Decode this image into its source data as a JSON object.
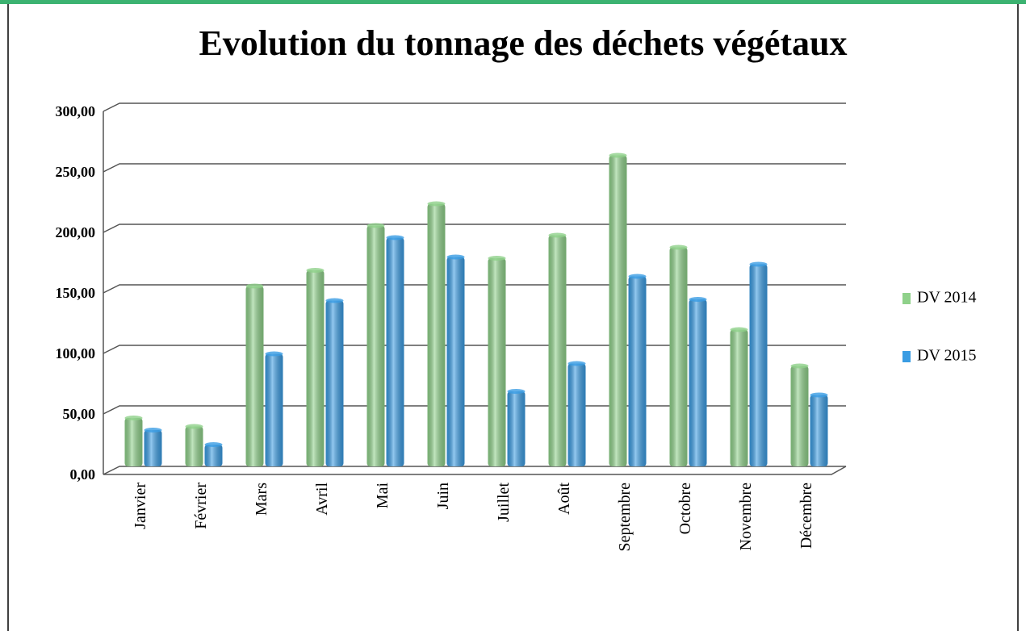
{
  "chart_data": {
    "type": "bar",
    "title": "Evolution du tonnage des déchets végétaux",
    "categories": [
      "Janvier",
      "Février",
      "Mars",
      "Avril",
      "Mai",
      "Juin",
      "Juillet",
      "Août",
      "Septembre",
      "Octobre",
      "Novembre",
      "Décembre"
    ],
    "series": [
      {
        "name": "DV 2014",
        "color": "#8fd18a",
        "values": [
          40,
          33,
          149,
          162,
          199,
          217,
          172,
          191,
          257,
          181,
          113,
          83
        ]
      },
      {
        "name": "DV 2015",
        "color": "#3a9ce3",
        "values": [
          30,
          18,
          93,
          137,
          189,
          173,
          62,
          85,
          157,
          138,
          167,
          59
        ]
      }
    ],
    "ylim": [
      0,
      300
    ],
    "yticks": [
      {
        "value": 0,
        "label": "0,00"
      },
      {
        "value": 50,
        "label": "50,00"
      },
      {
        "value": 100,
        "label": "100,00"
      },
      {
        "value": 150,
        "label": "150,00"
      },
      {
        "value": 200,
        "label": "200,00"
      },
      {
        "value": 250,
        "label": "250,00"
      },
      {
        "value": 300,
        "label": "300,00"
      }
    ],
    "grid": true,
    "legend": "right"
  }
}
